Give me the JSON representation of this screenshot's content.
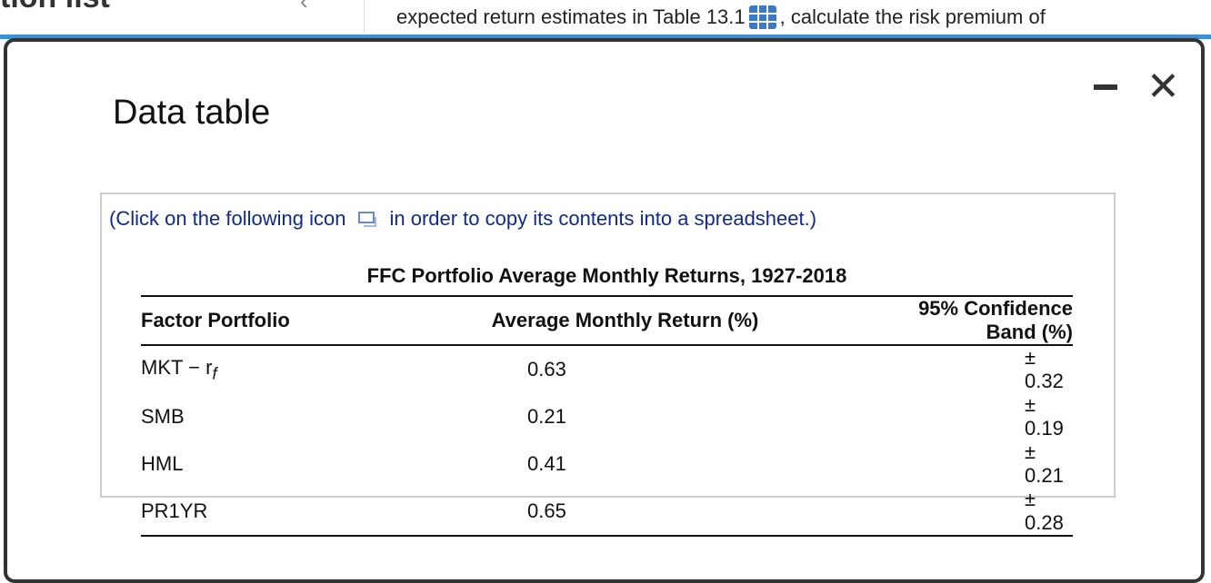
{
  "background": {
    "page_title": "tion list",
    "question_text_before": "expected return estimates in Table 13.1",
    "question_text_after": ", calculate the risk premium of",
    "table_icon": "table-grid-icon"
  },
  "modal": {
    "title": "Data table",
    "minimize_icon": "minimize-icon",
    "close_icon": "close-icon",
    "note_before": "(Click on the following icon",
    "note_after": "in order to copy its contents into a spreadsheet.)",
    "table": {
      "caption": "FFC Portfolio Average Monthly Returns, 1927-2018",
      "headers": [
        "Factor Portfolio",
        "Average Monthly Return (%)",
        "95% Confidence Band (%)"
      ],
      "rows": [
        [
          "MKT − r",
          "0.63",
          "± 0.32"
        ],
        [
          "SMB",
          "0.21",
          "± 0.19"
        ],
        [
          "HML",
          "0.41",
          "± 0.21"
        ],
        [
          "PR1YR",
          "0.65",
          "± 0.28"
        ]
      ],
      "rf_subscript": "f"
    }
  }
}
